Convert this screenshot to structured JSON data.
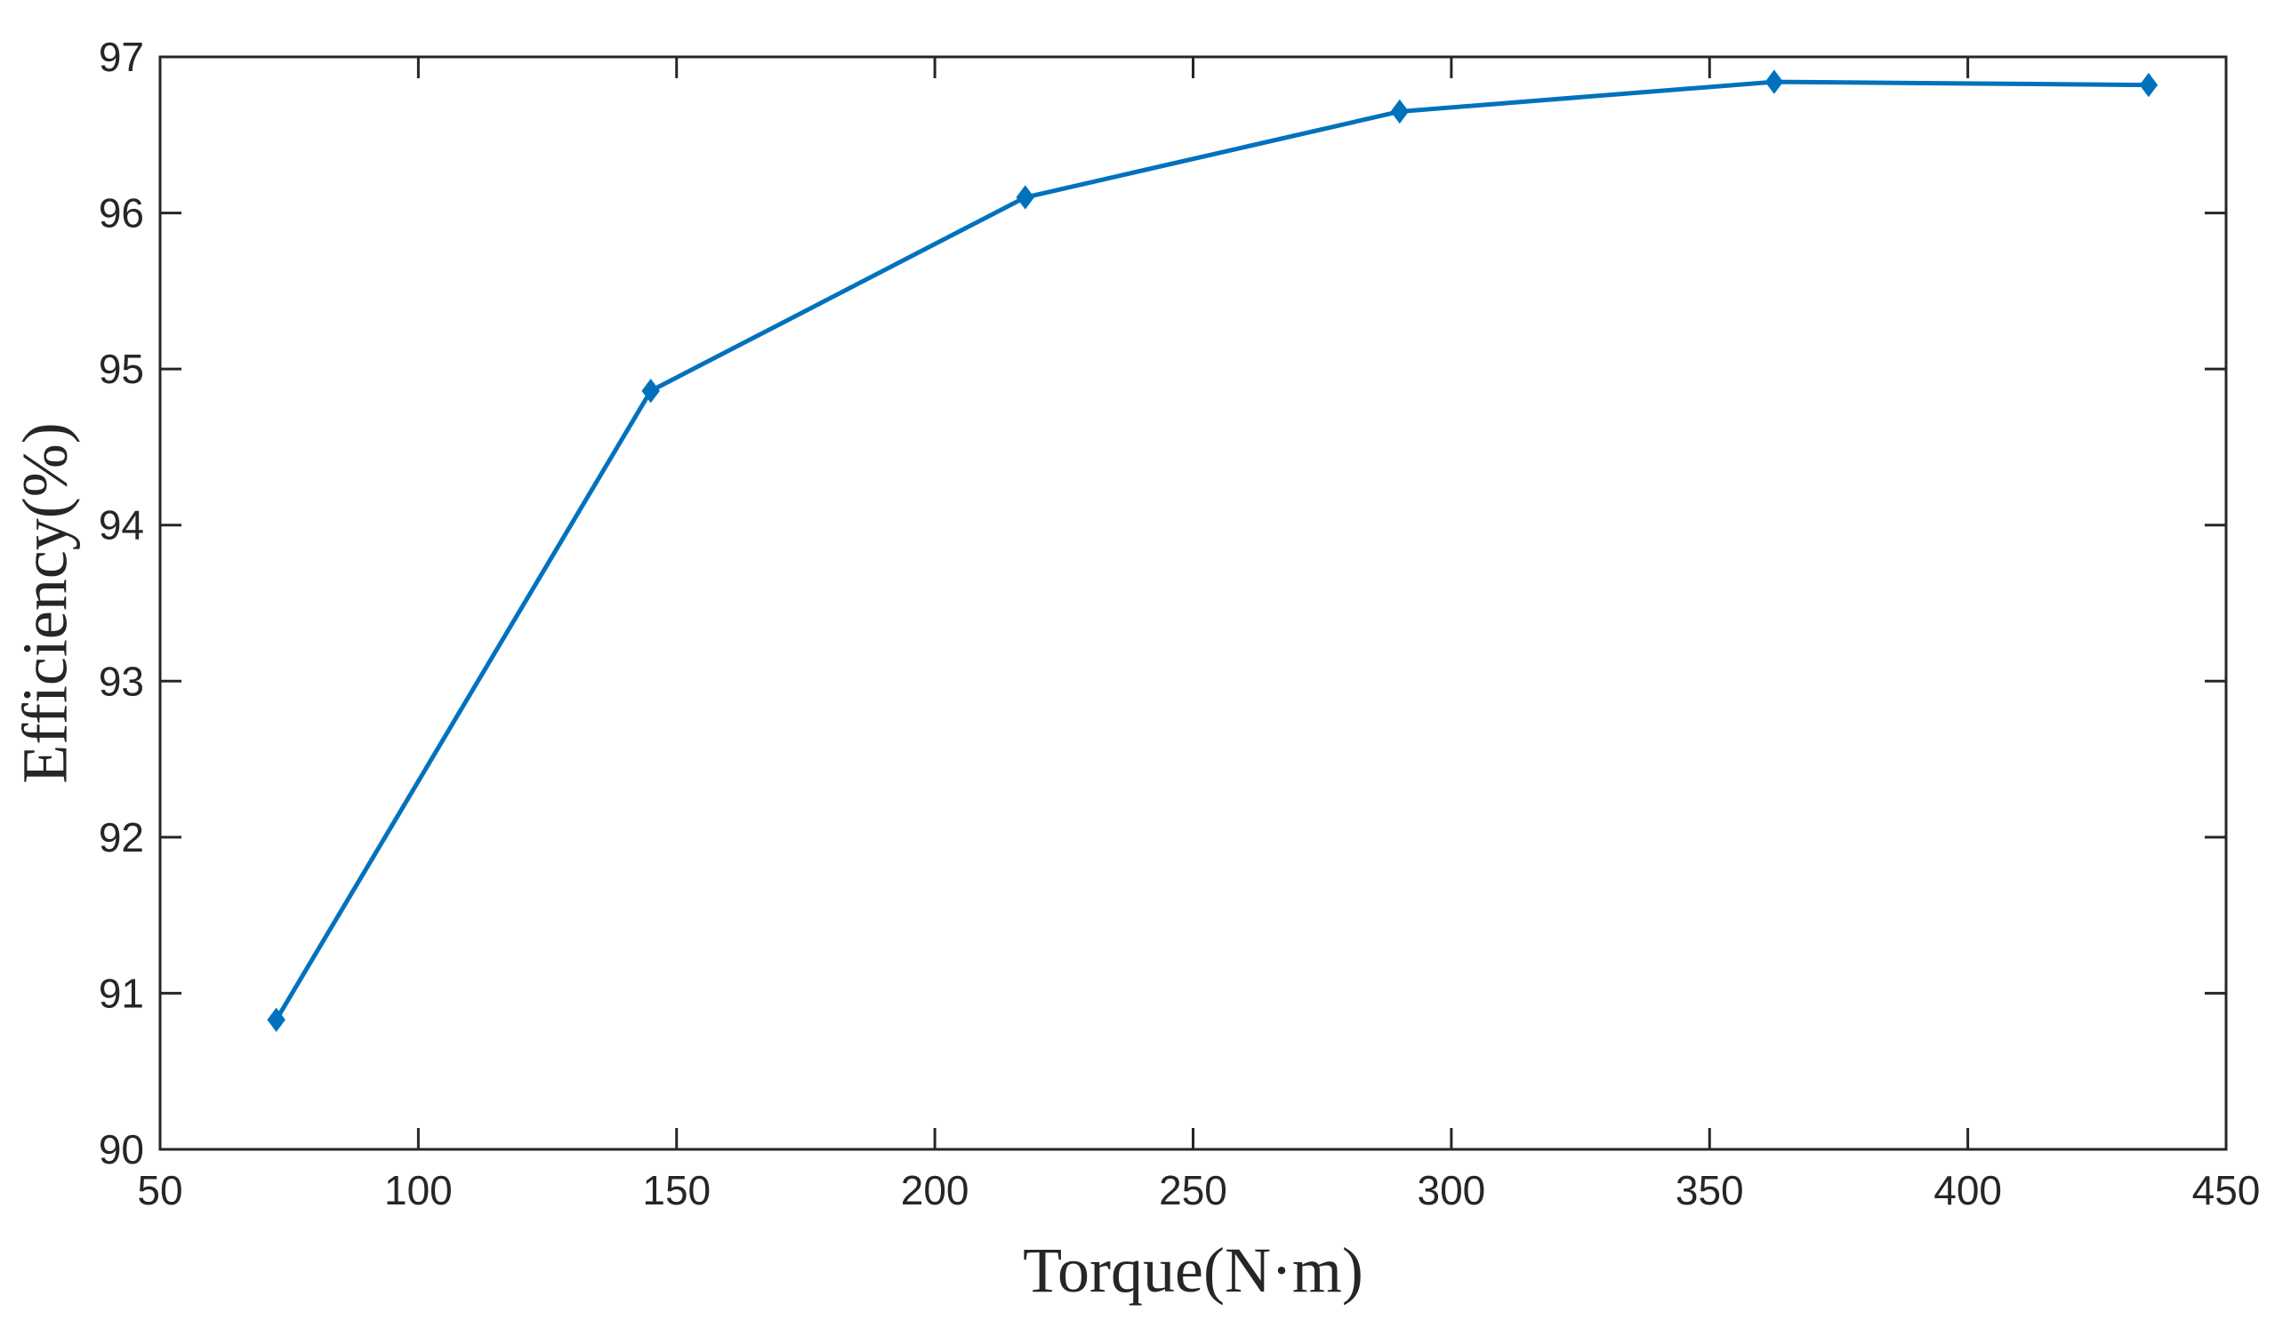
{
  "chart_data": {
    "type": "line",
    "xlabel": "Torque(N·m)",
    "ylabel": "Efficiency(%)",
    "xlim": [
      50,
      450
    ],
    "ylim": [
      90,
      97
    ],
    "xticks": [
      50,
      100,
      150,
      200,
      250,
      300,
      350,
      400,
      450
    ],
    "yticks": [
      90,
      91,
      92,
      93,
      94,
      95,
      96,
      97
    ],
    "grid": false,
    "line_color": "#0072BD",
    "marker": "diamond",
    "series": [
      {
        "x": [
          72.5,
          145,
          217.5,
          290,
          362.5,
          435
        ],
        "y": [
          90.83,
          94.86,
          96.1,
          96.65,
          96.84,
          96.82
        ]
      }
    ]
  }
}
